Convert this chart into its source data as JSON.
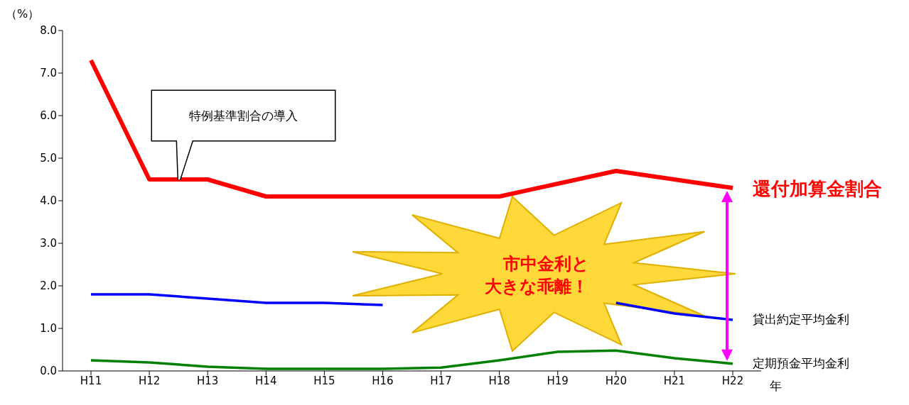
{
  "chart_data": {
    "type": "line",
    "ylabel": "（%）",
    "xlabel": "年",
    "categories": [
      "H11",
      "H12",
      "H13",
      "H14",
      "H15",
      "H16",
      "H17",
      "H18",
      "H19",
      "H20",
      "H21",
      "H22"
    ],
    "series": [
      {
        "name": "還付加算金割合",
        "color": "#ff0000",
        "values": [
          7.3,
          4.5,
          4.5,
          4.1,
          4.1,
          4.1,
          4.1,
          4.1,
          4.4,
          4.7,
          4.5,
          4.3
        ]
      },
      {
        "name": "貸出約定平均金利",
        "color": "#0000ff",
        "values": [
          1.8,
          1.8,
          1.7,
          1.6,
          1.6,
          1.55,
          null,
          null,
          null,
          1.6,
          1.35,
          1.2
        ]
      },
      {
        "name": "定期預金平均金利",
        "color": "#008000",
        "values": [
          0.25,
          0.2,
          0.1,
          0.05,
          0.05,
          0.05,
          0.08,
          0.25,
          0.45,
          0.48,
          0.3,
          0.17
        ]
      }
    ],
    "ylim": [
      0,
      8
    ],
    "yticks": [
      {
        "value": 0,
        "label": "0.0"
      },
      {
        "value": 1,
        "label": "1.0"
      },
      {
        "value": 2,
        "label": "2.0"
      },
      {
        "value": 3,
        "label": "3.0"
      },
      {
        "value": 4,
        "label": "4.0"
      },
      {
        "value": 5,
        "label": "5.0"
      },
      {
        "value": 6,
        "label": "6.0"
      },
      {
        "value": 7,
        "label": "7.0"
      },
      {
        "value": 8,
        "label": "8.0"
      }
    ],
    "annotations": [
      "特例基準割合の導入",
      "市中金利と大きな乖離！"
    ],
    "grid": false,
    "legend": false,
    "marker": "none",
    "line_style": "solid"
  }
}
